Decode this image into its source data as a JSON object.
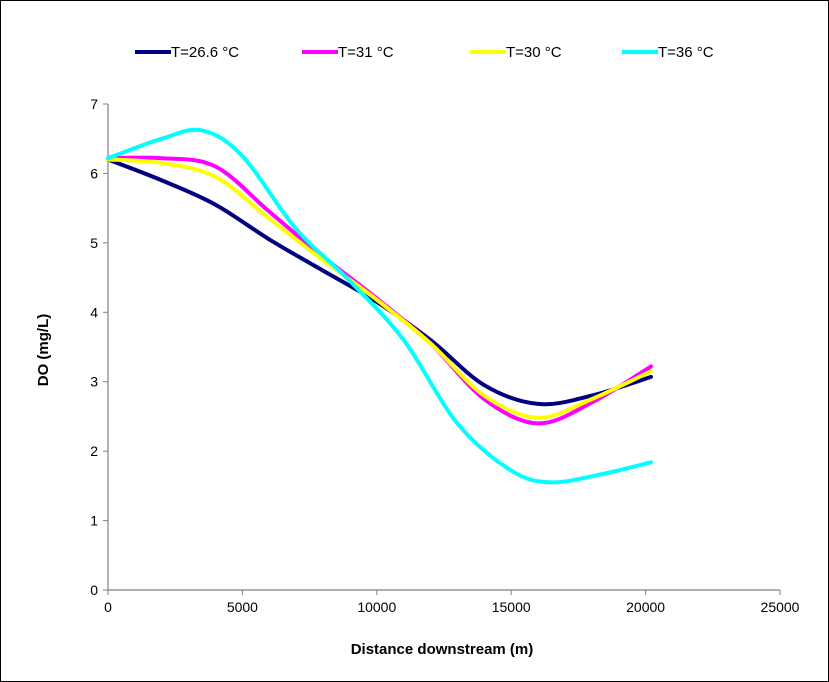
{
  "chart_data": {
    "type": "line",
    "title": "",
    "xlabel": "Distance downstream (m)",
    "ylabel": "DO  (mg/L)",
    "xlim": [
      0,
      25000
    ],
    "ylim": [
      0,
      7
    ],
    "x_ticks": [
      0,
      5000,
      10000,
      15000,
      20000,
      25000
    ],
    "y_ticks": [
      0,
      1,
      2,
      3,
      4,
      5,
      6,
      7
    ],
    "x_tick_labels": [
      "0",
      "5000",
      "10000",
      "15000",
      "20000",
      "25000"
    ],
    "y_tick_labels": [
      "0",
      "1",
      "2",
      "3",
      "4",
      "5",
      "6",
      "7"
    ],
    "grid": false,
    "legend_position": "top",
    "series": [
      {
        "name": "T=26.6 °C",
        "color": "#000080",
        "x": [
          0,
          2000,
          4000,
          6000,
          8000,
          10000,
          12000,
          14000,
          16000,
          18000,
          20200
        ],
        "y": [
          6.2,
          5.9,
          5.55,
          5.05,
          4.6,
          4.15,
          3.6,
          2.95,
          2.68,
          2.8,
          3.07
        ]
      },
      {
        "name": "T=31 °C",
        "color": "#FF00FF",
        "x": [
          0,
          2000,
          4000,
          6000,
          8000,
          10000,
          12000,
          14000,
          16000,
          18000,
          20200
        ],
        "y": [
          6.22,
          6.22,
          6.1,
          5.45,
          4.8,
          4.2,
          3.55,
          2.75,
          2.4,
          2.7,
          3.22
        ]
      },
      {
        "name": "T=30 °C",
        "color": "#FFFF00",
        "x": [
          0,
          2000,
          4000,
          6000,
          8000,
          10000,
          12000,
          14000,
          16000,
          18000,
          20200
        ],
        "y": [
          6.2,
          6.15,
          5.95,
          5.35,
          4.75,
          4.18,
          3.55,
          2.8,
          2.48,
          2.75,
          3.15
        ]
      },
      {
        "name": "T=36 °C",
        "color": "#00FFFF",
        "x": [
          0,
          2000,
          3500,
          5000,
          7000,
          9000,
          11000,
          13000,
          15000,
          16500,
          18500,
          20200
        ],
        "y": [
          6.22,
          6.5,
          6.62,
          6.25,
          5.2,
          4.45,
          3.6,
          2.4,
          1.72,
          1.55,
          1.68,
          1.84
        ]
      }
    ]
  }
}
